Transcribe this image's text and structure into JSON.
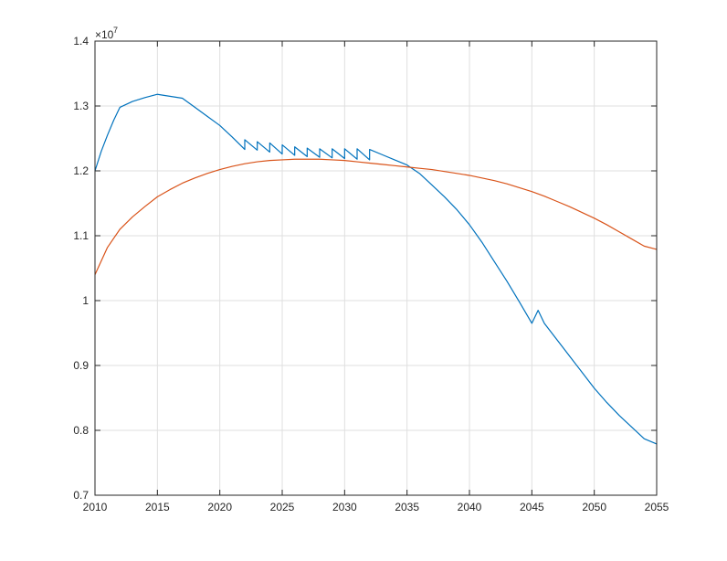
{
  "chart_data": {
    "type": "line",
    "title": "",
    "xlabel": "",
    "ylabel": "",
    "xlim": [
      2010,
      2055
    ],
    "ylim": [
      0.7,
      1.4
    ],
    "y_exponent_label": "×10",
    "y_exponent_power": "7",
    "xticks": [
      2010,
      2015,
      2020,
      2025,
      2030,
      2035,
      2040,
      2045,
      2050,
      2055
    ],
    "yticks": [
      0.7,
      0.8,
      0.9,
      1,
      1.1,
      1.2,
      1.3,
      1.4
    ],
    "ytick_labels": [
      "0.7",
      "0.8",
      "0.9",
      "1",
      "1.1",
      "1.2",
      "1.3",
      "1.4"
    ],
    "grid": true,
    "series": [
      {
        "color": "#0072BD",
        "points": [
          [
            2010,
            1.2
          ],
          [
            2010.5,
            1.23
          ],
          [
            2011,
            1.255
          ],
          [
            2011.5,
            1.278
          ],
          [
            2012,
            1.298
          ],
          [
            2013,
            1.307
          ],
          [
            2014,
            1.313
          ],
          [
            2015,
            1.318
          ],
          [
            2016,
            1.315
          ],
          [
            2017,
            1.312
          ],
          [
            2018,
            1.298
          ],
          [
            2019,
            1.284
          ],
          [
            2020,
            1.27
          ],
          [
            2021,
            1.252
          ],
          [
            2022,
            1.233
          ],
          [
            2022,
            1.248
          ],
          [
            2023,
            1.232
          ],
          [
            2023,
            1.245
          ],
          [
            2024,
            1.229
          ],
          [
            2024,
            1.243
          ],
          [
            2025,
            1.226
          ],
          [
            2025,
            1.24
          ],
          [
            2026,
            1.224
          ],
          [
            2026,
            1.237
          ],
          [
            2027,
            1.222
          ],
          [
            2027,
            1.235
          ],
          [
            2028,
            1.221
          ],
          [
            2028,
            1.234
          ],
          [
            2029,
            1.22
          ],
          [
            2029,
            1.234
          ],
          [
            2030,
            1.219
          ],
          [
            2030,
            1.234
          ],
          [
            2031,
            1.218
          ],
          [
            2031,
            1.234
          ],
          [
            2032,
            1.217
          ],
          [
            2032,
            1.233
          ],
          [
            2033,
            1.225
          ],
          [
            2034,
            1.217
          ],
          [
            2035,
            1.209
          ],
          [
            2036,
            1.196
          ],
          [
            2037,
            1.178
          ],
          [
            2038,
            1.16
          ],
          [
            2039,
            1.14
          ],
          [
            2040,
            1.117
          ],
          [
            2041,
            1.09
          ],
          [
            2042,
            1.06
          ],
          [
            2043,
            1.03
          ],
          [
            2044,
            0.998
          ],
          [
            2045,
            0.965
          ],
          [
            2045.5,
            0.985
          ],
          [
            2046,
            0.965
          ],
          [
            2047,
            0.94
          ],
          [
            2048,
            0.915
          ],
          [
            2049,
            0.89
          ],
          [
            2050,
            0.865
          ],
          [
            2051,
            0.843
          ],
          [
            2052,
            0.823
          ],
          [
            2053,
            0.805
          ],
          [
            2054,
            0.787
          ],
          [
            2055,
            0.779
          ]
        ]
      },
      {
        "color": "#D95319",
        "points": [
          [
            2010,
            1.04
          ],
          [
            2011,
            1.082
          ],
          [
            2012,
            1.11
          ],
          [
            2013,
            1.129
          ],
          [
            2014,
            1.145
          ],
          [
            2015,
            1.16
          ],
          [
            2016,
            1.171
          ],
          [
            2017,
            1.181
          ],
          [
            2018,
            1.189
          ],
          [
            2019,
            1.196
          ],
          [
            2020,
            1.202
          ],
          [
            2021,
            1.207
          ],
          [
            2022,
            1.211
          ],
          [
            2023,
            1.214
          ],
          [
            2024,
            1.216
          ],
          [
            2025,
            1.217
          ],
          [
            2026,
            1.218
          ],
          [
            2027,
            1.218
          ],
          [
            2028,
            1.218
          ],
          [
            2029,
            1.217
          ],
          [
            2030,
            1.216
          ],
          [
            2031,
            1.214
          ],
          [
            2032,
            1.212
          ],
          [
            2033,
            1.21
          ],
          [
            2034,
            1.208
          ],
          [
            2035,
            1.206
          ],
          [
            2036,
            1.204
          ],
          [
            2037,
            1.202
          ],
          [
            2038,
            1.199
          ],
          [
            2039,
            1.196
          ],
          [
            2040,
            1.193
          ],
          [
            2041,
            1.189
          ],
          [
            2042,
            1.185
          ],
          [
            2043,
            1.18
          ],
          [
            2044,
            1.174
          ],
          [
            2045,
            1.168
          ],
          [
            2046,
            1.161
          ],
          [
            2047,
            1.153
          ],
          [
            2048,
            1.145
          ],
          [
            2049,
            1.136
          ],
          [
            2050,
            1.127
          ],
          [
            2051,
            1.117
          ],
          [
            2052,
            1.106
          ],
          [
            2053,
            1.095
          ],
          [
            2054,
            1.084
          ],
          [
            2055,
            1.079
          ]
        ]
      }
    ]
  }
}
